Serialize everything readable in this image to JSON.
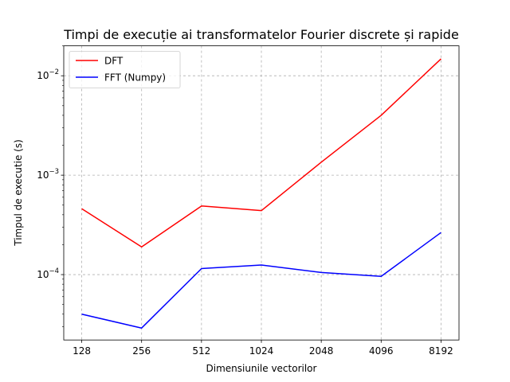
{
  "chart_data": {
    "type": "line",
    "title": "Timpi de execuție ai transformatelor Fourier discrete și rapide",
    "xlabel": "Dimensiunile vectorilor",
    "ylabel": "Timpul de executie (s)",
    "categories": [
      "128",
      "256",
      "512",
      "1024",
      "2048",
      "4096",
      "8192"
    ],
    "yscale": "log",
    "ylim": [
      2.2e-05,
      0.02
    ],
    "y_ticks": [
      {
        "value": 0.0001,
        "base": "10",
        "exp": "−4"
      },
      {
        "value": 0.001,
        "base": "10",
        "exp": "−3"
      },
      {
        "value": 0.01,
        "base": "10",
        "exp": "−2"
      }
    ],
    "grid": true,
    "legend_position": "top-left",
    "series": [
      {
        "name": "DFT",
        "color": "#ff0000",
        "values": [
          0.00046,
          0.00019,
          0.00049,
          0.00044,
          0.00135,
          0.004,
          0.0148
        ]
      },
      {
        "name": "FFT (Numpy)",
        "color": "#0000ff",
        "values": [
          4e-05,
          2.9e-05,
          0.000115,
          0.000125,
          0.000105,
          9.6e-05,
          0.000265
        ]
      }
    ]
  }
}
